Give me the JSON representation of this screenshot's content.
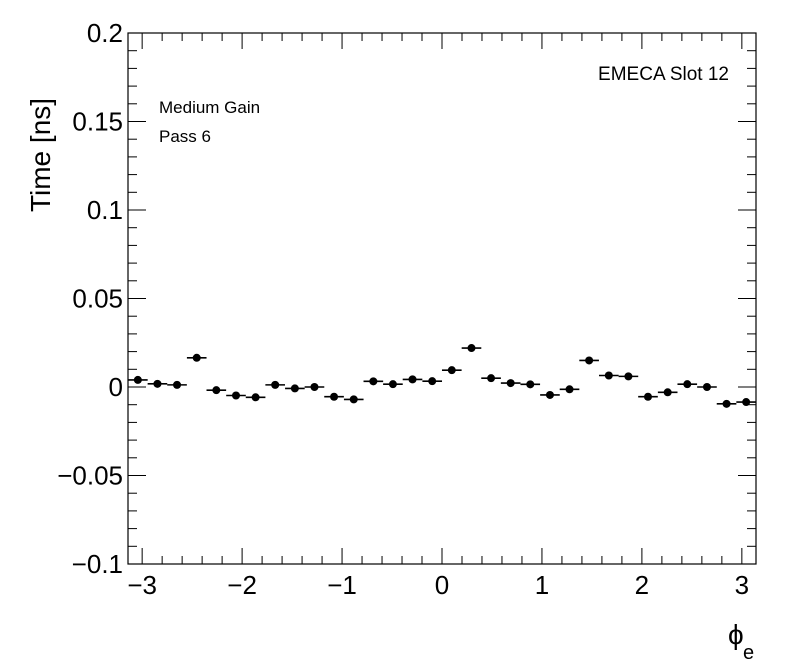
{
  "chart_data": {
    "type": "scatter",
    "title": "",
    "xlabel": "ϕ",
    "xlabel_sub": "e",
    "ylabel": "Time [ns]",
    "xlim": [
      -3.1416,
      3.1416
    ],
    "ylim": [
      -0.1,
      0.2
    ],
    "x_ticks": [
      -3,
      -2,
      -1,
      0,
      1,
      2,
      3
    ],
    "x_tick_labels": [
      "−3",
      "−2",
      "−1",
      "0",
      "1",
      "2",
      "3"
    ],
    "y_ticks": [
      -0.1,
      -0.05,
      0,
      0.05,
      0.1,
      0.15,
      0.2
    ],
    "y_tick_labels": [
      "−0.1",
      "−0.05",
      "0",
      "0.05",
      "0.1",
      "0.15",
      "0.2"
    ],
    "grid": false,
    "bin_width": 0.19635,
    "x": [
      -3.043,
      -2.847,
      -2.651,
      -2.454,
      -2.258,
      -2.061,
      -1.865,
      -1.669,
      -1.472,
      -1.276,
      -1.08,
      -0.883,
      -0.687,
      -0.491,
      -0.295,
      -0.098,
      0.098,
      0.295,
      0.491,
      0.687,
      0.883,
      1.08,
      1.276,
      1.472,
      1.669,
      1.865,
      2.061,
      2.258,
      2.454,
      2.651,
      2.847,
      3.043
    ],
    "values": [
      0.004,
      0.0018,
      0.0012,
      0.0165,
      -0.0018,
      -0.0048,
      -0.0058,
      0.0012,
      -0.0008,
      0.0,
      -0.0055,
      -0.007,
      0.0032,
      0.0016,
      0.0043,
      0.0033,
      0.0095,
      0.022,
      0.005,
      0.0022,
      0.0015,
      -0.0045,
      -0.0013,
      0.015,
      0.0065,
      0.006,
      -0.0055,
      -0.003,
      0.0016,
      0.0,
      -0.0095,
      -0.0085
    ],
    "annotations": {
      "top_right": "EMECA Slot 12",
      "top_left_line1": "Medium Gain",
      "top_left_line2": "Pass 6"
    },
    "marker_color": "#000000"
  }
}
